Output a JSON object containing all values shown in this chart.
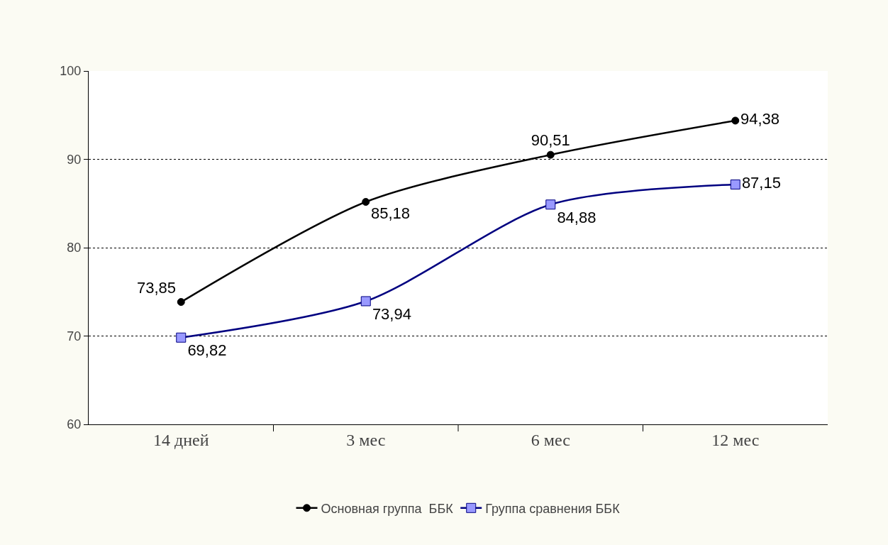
{
  "chart_data": {
    "type": "line",
    "categories": [
      "14 дней",
      "3 мес",
      "6 мес",
      "12 мес"
    ],
    "series": [
      {
        "name": "Основная группа  ББК",
        "color": "#000000",
        "marker": "circle",
        "values": [
          73.85,
          85.18,
          90.51,
          94.38
        ],
        "value_labels": [
          "73,85",
          "85,18",
          "90,51",
          "94,38"
        ]
      },
      {
        "name": "Группа сравнения ББК",
        "color": "#000080",
        "marker": "square",
        "values": [
          69.82,
          73.94,
          84.88,
          87.15
        ],
        "value_labels": [
          "69,82",
          "73,94",
          "84,88",
          "87,15"
        ]
      }
    ],
    "ylim": [
      60,
      100
    ],
    "yticks": [
      60,
      70,
      80,
      90,
      100
    ],
    "grid": "y",
    "legend": "bottom",
    "line_style": "solid"
  }
}
